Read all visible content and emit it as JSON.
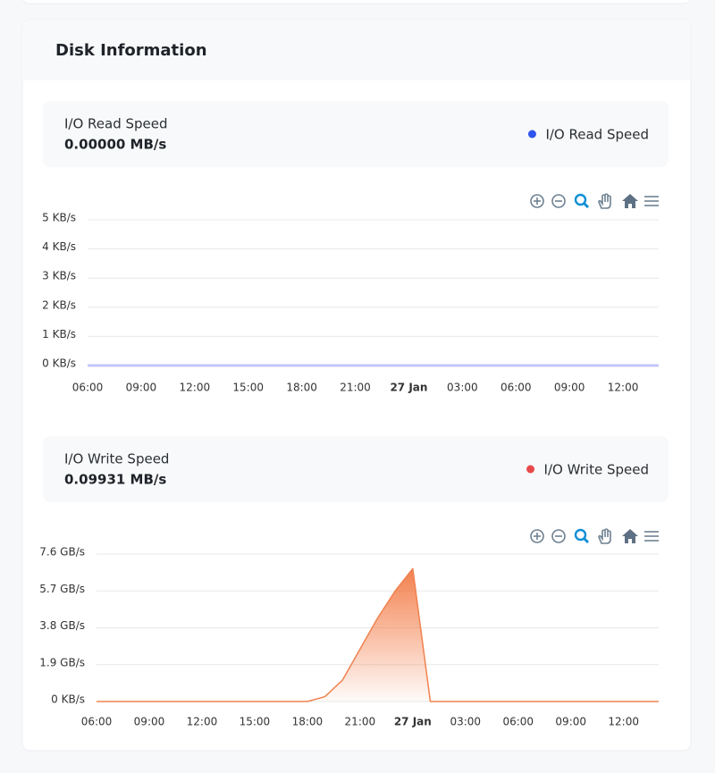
{
  "header": {
    "title": "Disk Information"
  },
  "chart_data": [
    {
      "type": "line",
      "title": "I/O Read Speed",
      "current_value": "0.00000 MB/s",
      "categories": [
        "06:00",
        null,
        null,
        "09:00",
        null,
        null,
        "12:00",
        null,
        null,
        "15:00",
        null,
        null,
        "18:00",
        null,
        null,
        "21:00",
        null,
        null,
        "27 Jan",
        null,
        null,
        "03:00",
        null,
        null,
        "06:00",
        null,
        null,
        "09:00",
        null,
        null,
        "12:00",
        null,
        null
      ],
      "series": [
        {
          "name": "I/O Read Speed",
          "color": "#2f54eb",
          "line_color": "#c3c6f7",
          "values": [
            0,
            0,
            0,
            0,
            0,
            0,
            0,
            0,
            0,
            0,
            0,
            0,
            0,
            0,
            0,
            0,
            0,
            0,
            0,
            0,
            0,
            0,
            0,
            0,
            0,
            0,
            0,
            0,
            0,
            0,
            0,
            0,
            0
          ]
        }
      ],
      "ylim": [
        0,
        5
      ],
      "yticks": [
        {
          "value": 0,
          "label": "0 KB/s"
        },
        {
          "value": 1,
          "label": "1 KB/s"
        },
        {
          "value": 2,
          "label": "2 KB/s"
        },
        {
          "value": 3,
          "label": "3 KB/s"
        },
        {
          "value": 4,
          "label": "4 KB/s"
        },
        {
          "value": 5,
          "label": "5 KB/s"
        }
      ],
      "grid": true
    },
    {
      "type": "area",
      "title": "I/O Write Speed",
      "current_value": "0.09931 MB/s",
      "categories": [
        "06:00",
        null,
        null,
        "09:00",
        null,
        null,
        "12:00",
        null,
        null,
        "15:00",
        null,
        null,
        "18:00",
        null,
        null,
        "21:00",
        null,
        null,
        "27 Jan",
        null,
        null,
        "03:00",
        null,
        null,
        "06:00",
        null,
        null,
        "09:00",
        null,
        null,
        "12:00",
        null,
        null
      ],
      "series": [
        {
          "name": "I/O Write Speed",
          "color": "#e64a4a",
          "line_color": "#f0824f",
          "values": [
            0,
            0,
            0,
            0,
            0,
            0,
            0,
            0,
            0,
            0,
            0,
            0,
            0,
            0.25,
            1.1,
            2.7,
            4.3,
            5.7,
            6.85,
            0,
            0,
            0,
            0,
            0,
            0,
            0,
            0,
            0,
            0,
            0,
            0,
            0,
            0
          ]
        }
      ],
      "ylim": [
        0,
        7.6
      ],
      "yticks": [
        {
          "value": 0,
          "label": "0 KB/s"
        },
        {
          "value": 1.9,
          "label": "1.9 GB/s"
        },
        {
          "value": 3.8,
          "label": "3.8 GB/s"
        },
        {
          "value": 5.7,
          "label": "5.7 GB/s"
        },
        {
          "value": 7.6,
          "label": "7.6 GB/s"
        }
      ],
      "grid": true
    }
  ]
}
